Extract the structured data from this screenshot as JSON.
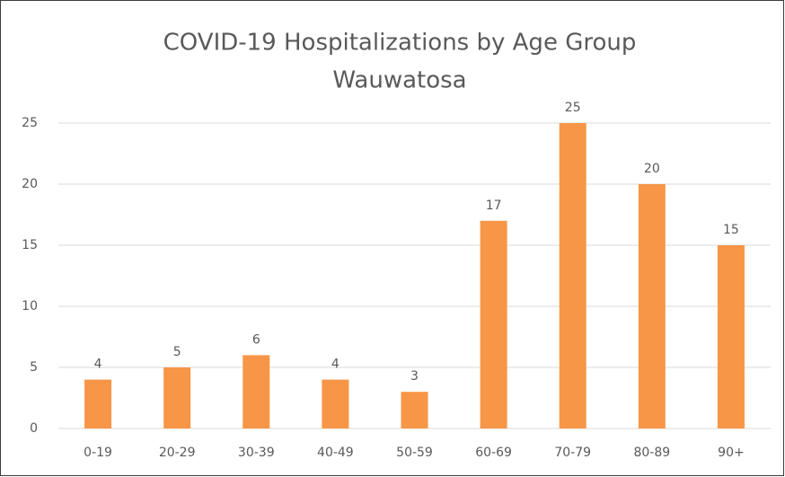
{
  "chart_data": {
    "type": "bar",
    "title": "COVID-19 Hospitalizations by Age Group",
    "subtitle": "Wauwatosa",
    "categories": [
      "0-19",
      "20-29",
      "30-39",
      "40-49",
      "50-59",
      "60-69",
      "70-79",
      "80-89",
      "90+"
    ],
    "values": [
      4,
      5,
      6,
      4,
      3,
      17,
      25,
      20,
      15
    ],
    "color": "#f79646",
    "ylim": [
      0,
      25
    ],
    "yticks": [
      0,
      5,
      10,
      15,
      20,
      25
    ],
    "grid": true,
    "data_labels": true
  }
}
